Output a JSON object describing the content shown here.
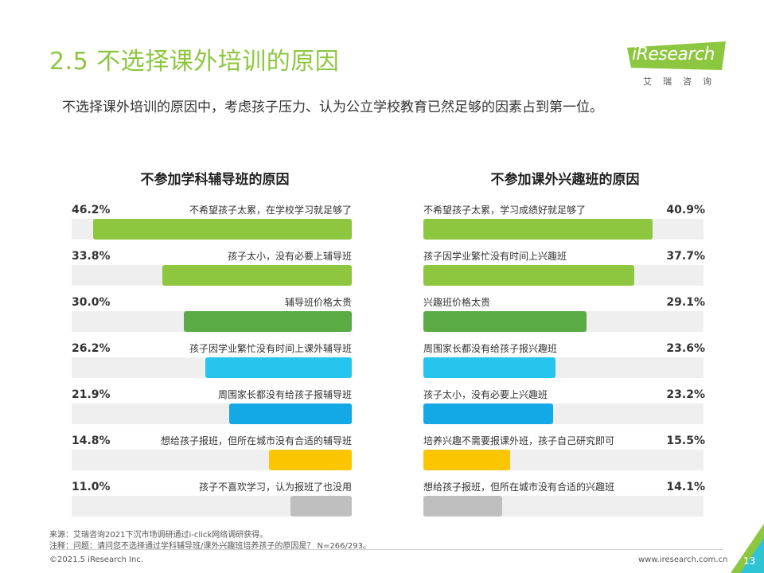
{
  "header": {
    "title": "2.5 不选择课外培训的原因",
    "subtitle": "不选择课外培训的原因中，考虑孩子压力、认为公立学校教育已然足够的因素占到第一位。",
    "logo_text": "iResearch",
    "logo_sub": "艾瑞咨询"
  },
  "chart_data": [
    {
      "type": "bar",
      "orientation": "horizontal",
      "title": "不参加学科辅导班的原因",
      "xlim": [
        0,
        50
      ],
      "categories": [
        "不希望孩子太累，在学校学习就足够了",
        "孩子太小，没有必要上辅导班",
        "辅导班价格太贵",
        "孩子因学业繁忙没有时间上课外辅导班",
        "周围家长都没有给孩子报辅导班",
        "想给孩子报班，但所在城市没有合适的辅导班",
        "孩子不喜欢学习，认为报班了也没用"
      ],
      "values": [
        46.2,
        33.8,
        30.0,
        26.2,
        21.9,
        14.8,
        11.0
      ],
      "value_labels": [
        "46.2%",
        "33.8%",
        "30.0%",
        "26.2%",
        "21.9%",
        "14.8%",
        "11.0%"
      ],
      "colors": [
        "#8dc63f",
        "#8dc63f",
        "#5aaa46",
        "#25c5ed",
        "#13a8e6",
        "#fbc600",
        "#bfbfbf"
      ]
    },
    {
      "type": "bar",
      "orientation": "horizontal",
      "title": "不参加课外兴趣班的原因",
      "xlim": [
        0,
        50
      ],
      "categories": [
        "不希望孩子太累，学习成绩好就足够了",
        "孩子因学业繁忙没有时间上兴趣班",
        "兴趣班价格太贵",
        "周围家长都没有给孩子报兴趣班",
        "孩子太小，没有必要上兴趣班",
        "培养兴趣不需要报课外班，孩子自己研究即可",
        "想给孩子报班，但所在城市没有合适的兴趣班"
      ],
      "values": [
        40.9,
        37.7,
        29.1,
        23.6,
        23.2,
        15.5,
        14.1
      ],
      "value_labels": [
        "40.9%",
        "37.7%",
        "29.1%",
        "23.6%",
        "23.2%",
        "15.5%",
        "14.1%"
      ],
      "colors": [
        "#8dc63f",
        "#8dc63f",
        "#5aaa46",
        "#25c5ed",
        "#13a8e6",
        "#fbc600",
        "#bfbfbf"
      ]
    }
  ],
  "footer": {
    "source": "来源：艾瑞咨询2021下沉市场调研通过i-click网络调研获得。",
    "note": "注释：问题：请问您不选择通过学科辅导班/课外兴趣班培养孩子的原因是？ N=266/293。",
    "copyright": "©2021.5 iResearch Inc.",
    "website": "www.iresearch.com.cn",
    "page": "13"
  }
}
